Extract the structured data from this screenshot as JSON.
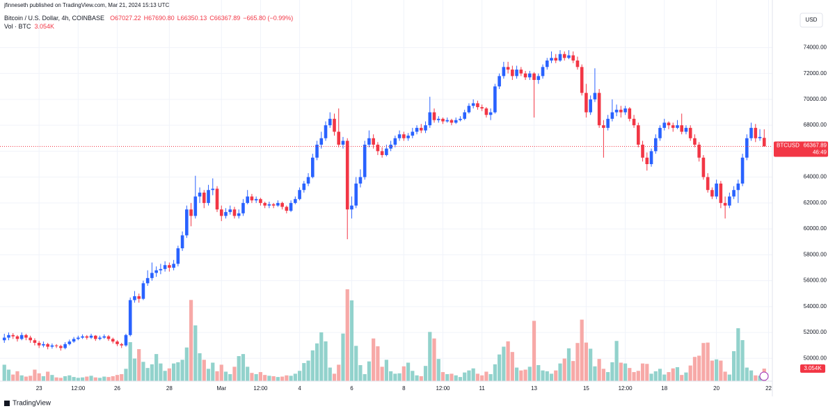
{
  "chart_data": {
    "type": "candlestick",
    "header": {
      "byline": "jfinneseth published on TradingView.com, Mar 21, 2024 15:13 UTC",
      "symbol": "Bitcoin / U.S. Dollar, 4h, COINBASE",
      "ohlc_text": [
        "O67027.22",
        "H67690.80",
        "L66350.13",
        "C66367.89",
        "−665.80 (−0.99%)"
      ],
      "volume_name": "Vol · BTC"
    },
    "currency": "USD",
    "price_tag": {
      "symbol": "BTCUSD",
      "countdown": "46:49"
    },
    "volume_label": "3.054K",
    "brand": "TradingView",
    "up_color": "#2962ff",
    "down_color": "#f23645",
    "volume_up_color": "#92d2cc",
    "volume_down_color": "#f7a9a7",
    "grid": true,
    "ylim": [
      47600,
      76600
    ],
    "yticks": [
      {
        "value": 50000,
        "label": "50000.00"
      },
      {
        "value": 52000,
        "label": "52000.00"
      },
      {
        "value": 54000,
        "label": "54000.00"
      },
      {
        "value": 56000,
        "label": "56000.00"
      },
      {
        "value": 58000,
        "label": "58000.00"
      },
      {
        "value": 60000,
        "label": "60000.00"
      },
      {
        "value": 62000,
        "label": "62000.00"
      },
      {
        "value": 64000,
        "label": "64000.00"
      },
      {
        "value": 66000,
        "label": "66000.00"
      },
      {
        "value": 68000,
        "label": "68000.00"
      },
      {
        "value": 70000,
        "label": "70000.00"
      },
      {
        "value": 72000,
        "label": "72000.00"
      },
      {
        "value": 74000,
        "label": "74000.00"
      }
    ],
    "xlim": [
      -1,
      178
    ],
    "xticks": [
      {
        "value": 8,
        "label": "23"
      },
      {
        "value": 17,
        "label": "12:00"
      },
      {
        "value": 26,
        "label": "26"
      },
      {
        "value": 38,
        "label": "28"
      },
      {
        "value": 50,
        "label": "Mar"
      },
      {
        "value": 59,
        "label": "12:00"
      },
      {
        "value": 68,
        "label": "4"
      },
      {
        "value": 80,
        "label": "6"
      },
      {
        "value": 92,
        "label": "8"
      },
      {
        "value": 101,
        "label": "12:00"
      },
      {
        "value": 110,
        "label": "11"
      },
      {
        "value": 122,
        "label": "13"
      },
      {
        "value": 134,
        "label": "15"
      },
      {
        "value": 143,
        "label": "12:00"
      },
      {
        "value": 152,
        "label": "18"
      },
      {
        "value": 164,
        "label": "20"
      },
      {
        "value": 176,
        "label": "22"
      }
    ],
    "ohlc": [
      [
        51400,
        51900,
        51200,
        51600
      ],
      [
        51600,
        52000,
        51400,
        51800
      ],
      [
        51800,
        51950,
        51500,
        51700
      ],
      [
        51700,
        51800,
        51300,
        51500
      ],
      [
        51500,
        52000,
        51400,
        51800
      ],
      [
        51800,
        51900,
        51400,
        51600
      ],
      [
        51600,
        51750,
        51200,
        51400
      ],
      [
        51400,
        51550,
        51000,
        51200
      ],
      [
        51200,
        51350,
        50800,
        51000
      ],
      [
        51000,
        51300,
        50850,
        51100
      ],
      [
        51100,
        51200,
        50700,
        50900
      ],
      [
        50900,
        51150,
        50750,
        51000
      ],
      [
        51000,
        51100,
        50800,
        50950
      ],
      [
        50950,
        51050,
        50600,
        50800
      ],
      [
        50800,
        51250,
        50700,
        51100
      ],
      [
        51100,
        51450,
        51000,
        51300
      ],
      [
        51300,
        51650,
        51200,
        51500
      ],
      [
        51500,
        51750,
        51400,
        51600
      ],
      [
        51600,
        51850,
        51500,
        51700
      ],
      [
        51700,
        51800,
        51450,
        51600
      ],
      [
        51600,
        51900,
        51500,
        51750
      ],
      [
        51750,
        51800,
        51350,
        51500
      ],
      [
        51500,
        51750,
        51400,
        51600
      ],
      [
        51600,
        51850,
        51500,
        51700
      ],
      [
        51700,
        51800,
        51350,
        51500
      ],
      [
        51500,
        51600,
        51150,
        51300
      ],
      [
        51300,
        51400,
        50950,
        51100
      ],
      [
        51100,
        51200,
        50800,
        51000
      ],
      [
        51000,
        51900,
        50900,
        51800
      ],
      [
        51800,
        54700,
        51700,
        54500
      ],
      [
        54500,
        55200,
        54300,
        54800
      ],
      [
        54800,
        55000,
        54300,
        54600
      ],
      [
        54600,
        56000,
        54500,
        55800
      ],
      [
        55800,
        56800,
        55600,
        56200
      ],
      [
        56200,
        57400,
        56000,
        56600
      ],
      [
        56600,
        57100,
        56300,
        56800
      ],
      [
        56800,
        57300,
        56500,
        56900
      ],
      [
        56900,
        57500,
        56700,
        57200
      ],
      [
        57200,
        57400,
        56700,
        57000
      ],
      [
        57000,
        57600,
        56800,
        57300
      ],
      [
        57300,
        58700,
        57100,
        58500
      ],
      [
        58500,
        59800,
        58300,
        59500
      ],
      [
        59500,
        61800,
        59300,
        61500
      ],
      [
        61500,
        62000,
        60200,
        61000
      ],
      [
        61000,
        64100,
        60800,
        62500
      ],
      [
        62500,
        63200,
        62000,
        62800
      ],
      [
        62800,
        63000,
        61600,
        62000
      ],
      [
        62000,
        63400,
        61800,
        63000
      ],
      [
        63000,
        63900,
        62600,
        63100
      ],
      [
        63100,
        63300,
        61300,
        61500
      ],
      [
        61500,
        61800,
        60600,
        61000
      ],
      [
        61000,
        61600,
        60800,
        61300
      ],
      [
        61300,
        61800,
        61100,
        61500
      ],
      [
        61500,
        61700,
        60800,
        61000
      ],
      [
        61000,
        61500,
        60800,
        61200
      ],
      [
        61200,
        62300,
        61000,
        62000
      ],
      [
        62000,
        63000,
        61900,
        62500
      ],
      [
        62500,
        62700,
        62000,
        62200
      ],
      [
        62200,
        62500,
        62000,
        62300
      ],
      [
        62300,
        62400,
        61800,
        62000
      ],
      [
        62000,
        62100,
        61600,
        61800
      ],
      [
        61800,
        62100,
        61600,
        61900
      ],
      [
        61900,
        62000,
        61600,
        61800
      ],
      [
        61800,
        62200,
        61700,
        62000
      ],
      [
        62000,
        62100,
        61500,
        61700
      ],
      [
        61700,
        61800,
        61200,
        61400
      ],
      [
        61400,
        62200,
        61300,
        62000
      ],
      [
        62000,
        62500,
        61900,
        62300
      ],
      [
        62300,
        63200,
        62200,
        63000
      ],
      [
        63000,
        63700,
        62800,
        63500
      ],
      [
        63500,
        64300,
        63300,
        64000
      ],
      [
        64000,
        65800,
        63900,
        65500
      ],
      [
        65500,
        66800,
        65300,
        66500
      ],
      [
        66500,
        67500,
        66200,
        67000
      ],
      [
        67000,
        68300,
        66800,
        68000
      ],
      [
        68000,
        69000,
        67800,
        68500
      ],
      [
        68500,
        68900,
        67200,
        67500
      ],
      [
        67500,
        69300,
        66300,
        66500
      ],
      [
        66500,
        67100,
        66200,
        66800
      ],
      [
        66800,
        67000,
        59200,
        61500
      ],
      [
        61500,
        62500,
        60800,
        61800
      ],
      [
        61800,
        64000,
        61600,
        63500
      ],
      [
        63500,
        64600,
        63200,
        64000
      ],
      [
        64000,
        66800,
        63800,
        66500
      ],
      [
        66500,
        67600,
        66300,
        67000
      ],
      [
        67000,
        67300,
        66200,
        66500
      ],
      [
        66500,
        66700,
        65700,
        66000
      ],
      [
        66000,
        66300,
        65500,
        65700
      ],
      [
        65700,
        66500,
        65600,
        66200
      ],
      [
        66200,
        66800,
        66000,
        66500
      ],
      [
        66500,
        67200,
        66300,
        67000
      ],
      [
        67000,
        67600,
        66800,
        67300
      ],
      [
        67300,
        67500,
        66800,
        67000
      ],
      [
        67000,
        67400,
        66800,
        67200
      ],
      [
        67200,
        67800,
        67000,
        67500
      ],
      [
        67500,
        68000,
        67300,
        67800
      ],
      [
        67800,
        68100,
        67400,
        67600
      ],
      [
        67600,
        68300,
        67400,
        68000
      ],
      [
        68000,
        70200,
        67800,
        69000
      ],
      [
        69000,
        69300,
        68200,
        68400
      ],
      [
        68400,
        68700,
        68200,
        68500
      ],
      [
        68500,
        68600,
        68100,
        68300
      ],
      [
        68300,
        68600,
        68200,
        68400
      ],
      [
        68400,
        68500,
        68000,
        68200
      ],
      [
        68200,
        68600,
        68100,
        68400
      ],
      [
        68400,
        68700,
        68300,
        68500
      ],
      [
        68500,
        69200,
        68400,
        69000
      ],
      [
        69000,
        69700,
        68900,
        69500
      ],
      [
        69500,
        70000,
        69300,
        69700
      ],
      [
        69700,
        69900,
        69200,
        69400
      ],
      [
        69400,
        69600,
        69100,
        69300
      ],
      [
        69300,
        69400,
        68600,
        68800
      ],
      [
        68800,
        69300,
        68400,
        69000
      ],
      [
        69000,
        71200,
        68900,
        71000
      ],
      [
        71000,
        72000,
        70800,
        71800
      ],
      [
        71800,
        72900,
        71600,
        72500
      ],
      [
        72500,
        72900,
        72000,
        72300
      ],
      [
        72300,
        72600,
        71500,
        71800
      ],
      [
        71800,
        72600,
        71600,
        72300
      ],
      [
        72300,
        72500,
        71800,
        72000
      ],
      [
        72000,
        72200,
        71500,
        71700
      ],
      [
        71700,
        72200,
        71500,
        72000
      ],
      [
        72000,
        72100,
        68600,
        71500
      ],
      [
        71500,
        72000,
        71200,
        71800
      ],
      [
        71800,
        72700,
        71600,
        72500
      ],
      [
        72500,
        73200,
        72300,
        73000
      ],
      [
        73000,
        73700,
        72800,
        73200
      ],
      [
        73200,
        73500,
        72800,
        73000
      ],
      [
        73000,
        73800,
        72900,
        73500
      ],
      [
        73500,
        73700,
        73000,
        73200
      ],
      [
        73200,
        73800,
        73100,
        73400
      ],
      [
        73400,
        73700,
        72800,
        73000
      ],
      [
        73000,
        73300,
        72300,
        72500
      ],
      [
        72500,
        72700,
        70300,
        70500
      ],
      [
        70500,
        71200,
        68600,
        69000
      ],
      [
        69000,
        70300,
        68800,
        70000
      ],
      [
        70000,
        72400,
        69800,
        70500
      ],
      [
        70500,
        70800,
        67800,
        68000
      ],
      [
        68000,
        68400,
        65500,
        67800
      ],
      [
        67800,
        68800,
        67600,
        68500
      ],
      [
        68500,
        70000,
        68300,
        69000
      ],
      [
        69000,
        69600,
        68700,
        69200
      ],
      [
        69200,
        69500,
        68600,
        69000
      ],
      [
        69000,
        69500,
        68800,
        69300
      ],
      [
        69300,
        69400,
        68300,
        68500
      ],
      [
        68500,
        68800,
        67800,
        68000
      ],
      [
        68000,
        68200,
        66300,
        66500
      ],
      [
        66500,
        66800,
        65200,
        65500
      ],
      [
        65500,
        65900,
        64500,
        65000
      ],
      [
        65000,
        66200,
        64800,
        66000
      ],
      [
        66000,
        67300,
        65800,
        67000
      ],
      [
        67000,
        68000,
        66800,
        67800
      ],
      [
        67800,
        68500,
        67600,
        68200
      ],
      [
        68200,
        68300,
        67700,
        68000
      ],
      [
        68000,
        68200,
        67500,
        67800
      ],
      [
        67800,
        68400,
        67700,
        68000
      ],
      [
        68000,
        68900,
        67300,
        67500
      ],
      [
        67500,
        68000,
        67300,
        67800
      ],
      [
        67800,
        68000,
        66800,
        67000
      ],
      [
        67000,
        67300,
        66300,
        66500
      ],
      [
        66500,
        66700,
        65200,
        65500
      ],
      [
        65500,
        65700,
        63800,
        64000
      ],
      [
        64000,
        64300,
        62800,
        63000
      ],
      [
        63000,
        63200,
        62300,
        62500
      ],
      [
        62500,
        63800,
        62300,
        63500
      ],
      [
        63500,
        63700,
        61600,
        62000
      ],
      [
        62000,
        62500,
        60800,
        61800
      ],
      [
        61800,
        62800,
        61600,
        62500
      ],
      [
        62500,
        63300,
        62300,
        63000
      ],
      [
        63000,
        63800,
        62000,
        63500
      ],
      [
        63500,
        65800,
        63300,
        65500
      ],
      [
        65500,
        67300,
        65300,
        67000
      ],
      [
        67000,
        68200,
        66800,
        67800
      ],
      [
        67800,
        68100,
        66700,
        67000
      ],
      [
        67000,
        67700,
        66800,
        67100
      ],
      [
        67027.22,
        67690.8,
        66350.13,
        66367.89
      ]
    ],
    "volumes": [
      4000,
      2800,
      1600,
      2400,
      1400,
      1100,
      1300,
      2800,
      1900,
      1200,
      2300,
      1500,
      900,
      800,
      1200,
      1400,
      1000,
      800,
      900,
      1100,
      1300,
      900,
      800,
      1100,
      1000,
      1200,
      1500,
      1700,
      3000,
      9500,
      5500,
      7800,
      4700,
      3200,
      4100,
      6600,
      4300,
      2500,
      3100,
      4300,
      4600,
      5200,
      8200,
      19800,
      13600,
      6800,
      5200,
      3000,
      4500,
      2400,
      4000,
      2300,
      1700,
      3500,
      6100,
      6600,
      3500,
      2000,
      1700,
      2200,
      1500,
      1300,
      1200,
      1000,
      1100,
      1400,
      1300,
      1800,
      2500,
      4400,
      5000,
      7500,
      9200,
      11900,
      9700,
      3300,
      1800,
      4000,
      11600,
      22400,
      19700,
      8600,
      3900,
      1700,
      4800,
      10400,
      8500,
      3500,
      5200,
      2400,
      1800,
      1900,
      3600,
      4500,
      2500,
      1400,
      1200,
      3700,
      12000,
      10400,
      5400,
      2200,
      1700,
      1800,
      1400,
      1000,
      2100,
      2600,
      3100,
      1800,
      1400,
      2300,
      1700,
      4100,
      6500,
      8400,
      9700,
      7100,
      3300,
      2600,
      2800,
      3500,
      14700,
      3900,
      2600,
      2400,
      1800,
      2600,
      4300,
      5500,
      8000,
      4900,
      9300,
      15000,
      9400,
      7900,
      3600,
      5400,
      3000,
      2200,
      4600,
      9800,
      4500,
      4300,
      3200,
      2200,
      2500,
      4300,
      4200,
      1800,
      2400,
      3000,
      1600,
      2200,
      3100,
      3400,
      1500,
      2100,
      3800,
      5900,
      6200,
      9300,
      9400,
      5000,
      5300,
      5000,
      2300,
      1600,
      7300,
      12900,
      10000,
      3300,
      2600,
      1400,
      1300,
      3054
    ]
  }
}
